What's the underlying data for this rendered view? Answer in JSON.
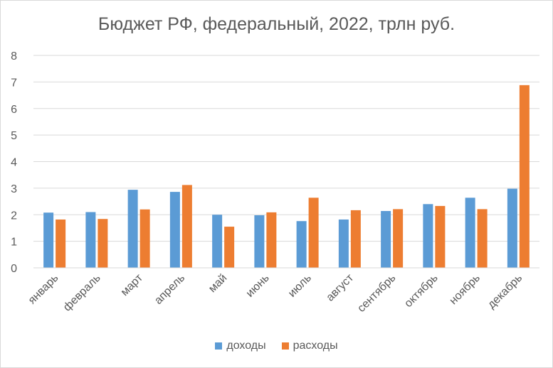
{
  "chart_data": {
    "type": "bar",
    "title": "Бюджет РФ, федеральный, 2022, трлн руб.",
    "categories": [
      "январь",
      "февраль",
      "март",
      "апрель",
      "май",
      "июнь",
      "июль",
      "август",
      "сентябрь",
      "октябрь",
      "ноябрь",
      "декабрь"
    ],
    "series": [
      {
        "name": "доходы",
        "color": "#5b9bd5",
        "values": [
          2.08,
          2.1,
          2.94,
          2.86,
          2.0,
          1.98,
          1.76,
          1.82,
          2.14,
          2.4,
          2.64,
          2.98
        ]
      },
      {
        "name": "расходы",
        "color": "#ed7d31",
        "values": [
          1.82,
          1.84,
          2.2,
          3.12,
          1.55,
          2.09,
          2.64,
          2.17,
          2.21,
          2.33,
          2.21,
          6.88
        ]
      }
    ],
    "ylim": [
      0,
      8
    ],
    "yticks": [
      0,
      1,
      2,
      3,
      4,
      5,
      6,
      7,
      8
    ],
    "grid": true,
    "legend_position": "bottom"
  }
}
